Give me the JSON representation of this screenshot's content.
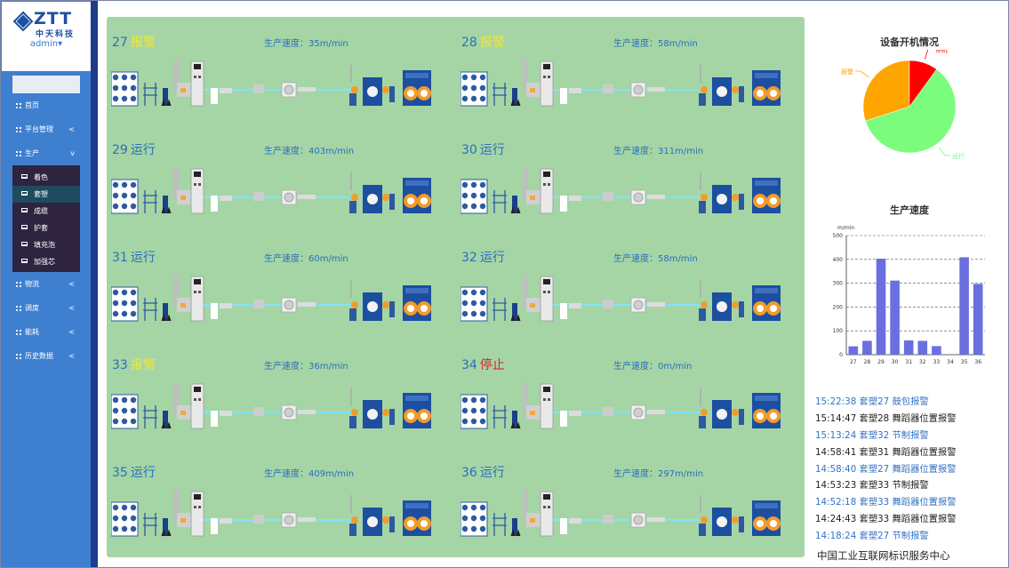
{
  "app": {
    "logo": "ZTT",
    "logo_sub": "中天科技",
    "user": "admin"
  },
  "nav": {
    "items": [
      {
        "label": "首页"
      },
      {
        "label": "平台管理",
        "chevron": "<"
      },
      {
        "label": "生产",
        "chevron": "v"
      }
    ],
    "sub_items": [
      {
        "label": "着色"
      },
      {
        "label": "套塑"
      },
      {
        "label": "成缆"
      },
      {
        "label": "护套"
      },
      {
        "label": "填充泡"
      },
      {
        "label": "加强芯"
      }
    ],
    "bottom_items": [
      {
        "label": "物流",
        "chevron": "<"
      },
      {
        "label": "调度",
        "chevron": "<"
      },
      {
        "label": "能耗",
        "chevron": "<"
      },
      {
        "label": "历史数据",
        "chevron": "<"
      }
    ]
  },
  "machines": [
    {
      "id": "27",
      "status": "报警",
      "speed": "生产速度：35m/min"
    },
    {
      "id": "28",
      "status": "报警",
      "speed": "生产速度：58m/min"
    },
    {
      "id": "29",
      "status": "运行",
      "speed": "生产速度：403m/min"
    },
    {
      "id": "30",
      "status": "运行",
      "speed": "生产速度：311m/min"
    },
    {
      "id": "31",
      "status": "运行",
      "speed": "生产速度：60m/min"
    },
    {
      "id": "32",
      "status": "运行",
      "speed": "生产速度：58m/min"
    },
    {
      "id": "33",
      "status": "报警",
      "speed": "生产速度：36m/min"
    },
    {
      "id": "34",
      "status": "停止",
      "speed": "生产速度：0m/min"
    },
    {
      "id": "35",
      "status": "运行",
      "speed": "生产速度：409m/min"
    },
    {
      "id": "36",
      "status": "运行",
      "speed": "生产速度：297m/min"
    }
  ],
  "status_colors": {
    "运行": "#2a6fbd",
    "报警": "#f0e63a",
    "停止": "#e02020"
  },
  "chart_data": [
    {
      "type": "pie",
      "title": "设备开机情况",
      "categories": [
        "报警",
        "停机",
        "运行"
      ],
      "values": [
        3,
        1,
        6
      ],
      "colors": [
        "#ffa500",
        "#ff0000",
        "#7cfc7c"
      ]
    },
    {
      "type": "bar",
      "title": "生产速度",
      "ylabel": "m/min",
      "categories": [
        "27",
        "28",
        "29",
        "30",
        "31",
        "32",
        "33",
        "34",
        "35",
        "36"
      ],
      "values": [
        35,
        58,
        403,
        311,
        60,
        58,
        36,
        0,
        409,
        297
      ],
      "ylim": [
        0,
        500
      ],
      "yticks": [
        0,
        100,
        200,
        300,
        400,
        500
      ],
      "color": "#6a6fdf",
      "grid": true
    }
  ],
  "events": [
    {
      "text": "15:22:38 套塑27 鼓包报警",
      "color": "blue"
    },
    {
      "text": "15:14:47 套塑28 舞蹈器位置报警",
      "color": "black"
    },
    {
      "text": "15:13:24 套塑32 节制报警",
      "color": "blue"
    },
    {
      "text": "14:58:41 套塑31 舞蹈器位置报警",
      "color": "black"
    },
    {
      "text": "14:58:40 套塑27 舞蹈器位置报警",
      "color": "blue"
    },
    {
      "text": "14:53:23 套塑33 节制报警",
      "color": "black"
    },
    {
      "text": "14:52:18 套塑33 舞蹈器位置报警",
      "color": "blue"
    },
    {
      "text": "14:24:43 套塑33 舞蹈器位置报警",
      "color": "black"
    },
    {
      "text": "14:18:24 套塑27 节制报警",
      "color": "blue"
    }
  ],
  "watermark": "中国工业互联网标识服务中心"
}
